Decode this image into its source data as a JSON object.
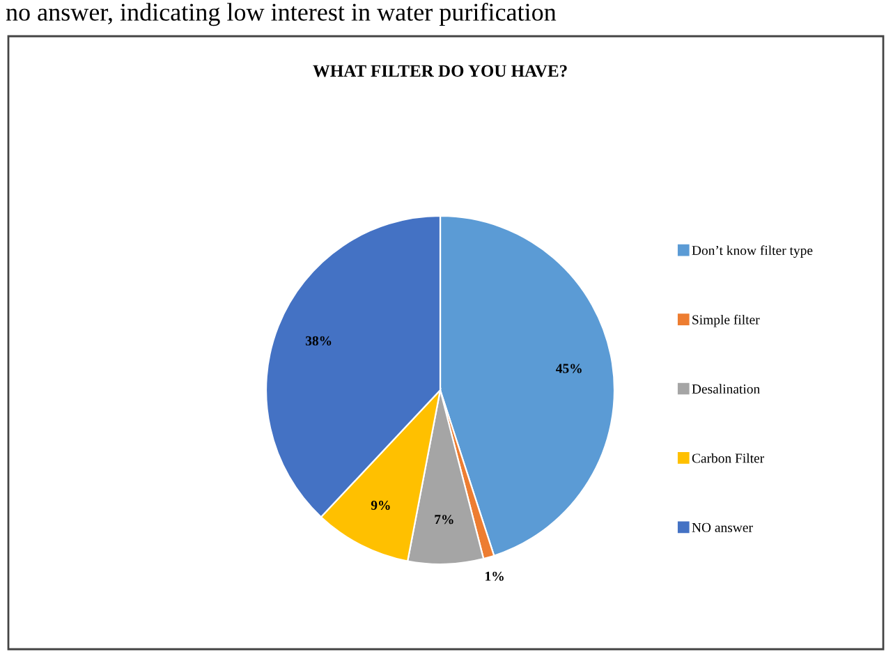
{
  "chart_data": {
    "type": "pie",
    "title": "WHAT FILTER DO YOU HAVE?",
    "categories": [
      "Don’t know filter type",
      "Simple filter",
      "Desalination",
      "Carbon Filter",
      "NO answer"
    ],
    "values": [
      45,
      1,
      7,
      9,
      38
    ],
    "colors": [
      "#5b9bd5",
      "#ed7d31",
      "#a5a5a5",
      "#ffc000",
      "#4472c4"
    ],
    "value_labels": [
      "45%",
      "1%",
      "7%",
      "9%",
      "38%"
    ],
    "legend": "right",
    "annotations": [
      "no answer, indicating low interest in water purification"
    ]
  }
}
